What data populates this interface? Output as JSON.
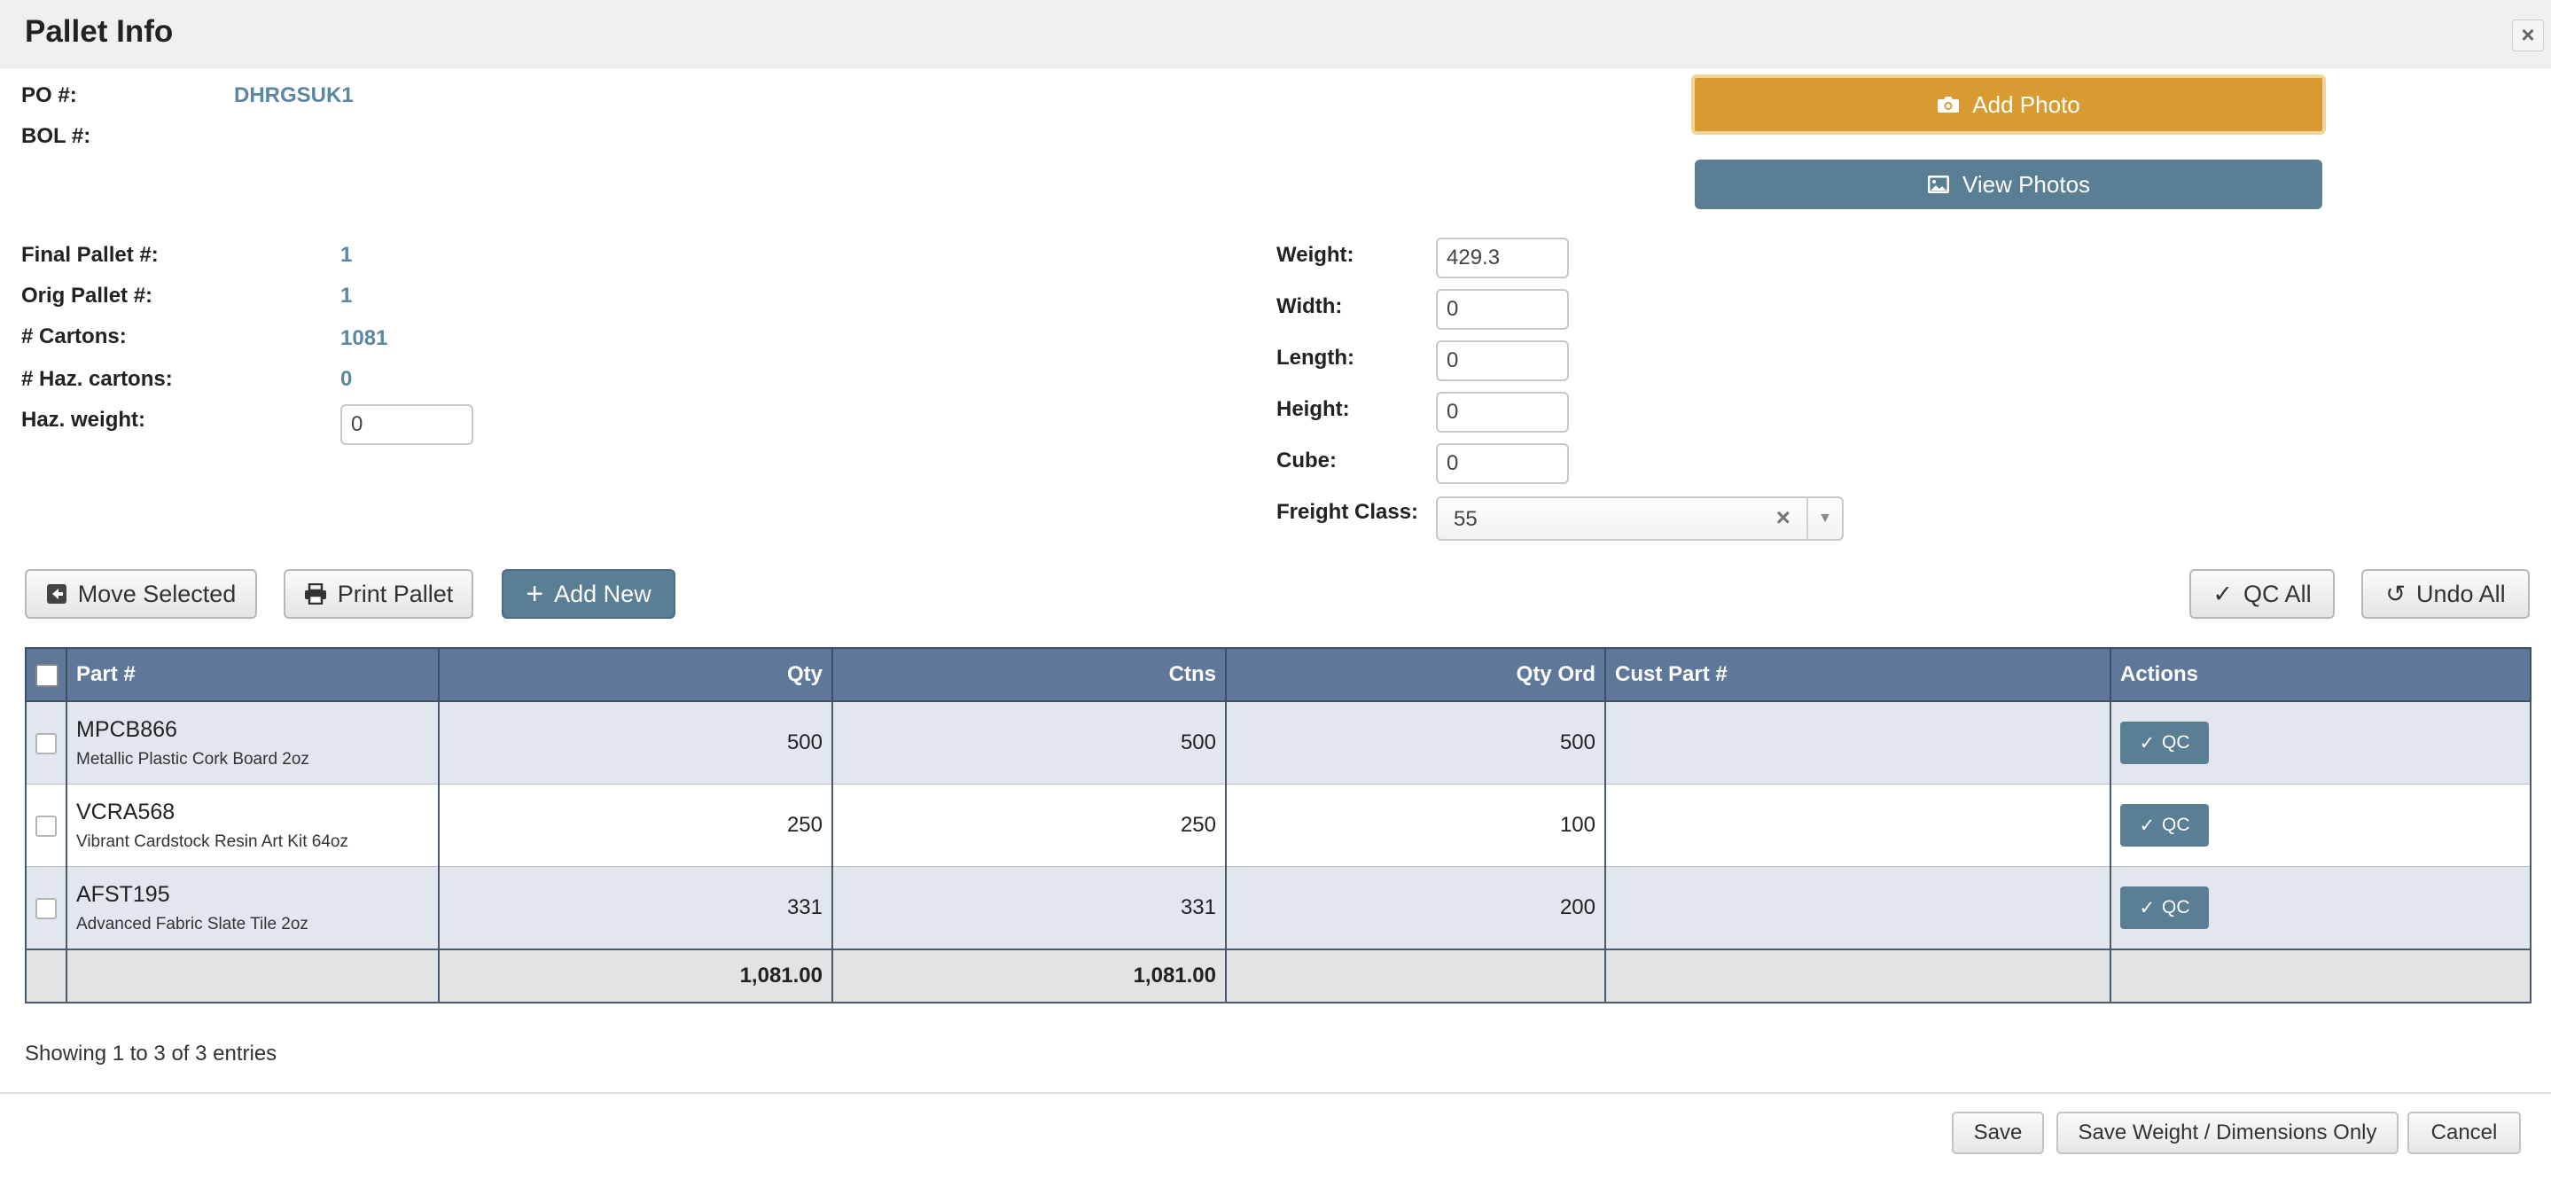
{
  "header": {
    "title": "Pallet Info",
    "close_icon": "close-icon"
  },
  "po": {
    "label": "PO #:",
    "value": "DHRGSUK1"
  },
  "bol": {
    "label": "BOL #:",
    "value": ""
  },
  "photos": {
    "add_label": "Add Photo",
    "view_label": "View Photos",
    "add_color": "#d89b31",
    "view_color": "#5a7f94"
  },
  "pallet": {
    "final_label": "Final Pallet #:",
    "final_value": "1",
    "orig_label": "Orig Pallet #:",
    "orig_value": "1",
    "cartons_label": "# Cartons:",
    "cartons_value": "1081",
    "haz_cartons_label": "# Haz. cartons:",
    "haz_cartons_value": "0",
    "haz_weight_label": "Haz. weight:",
    "haz_weight_value": "0"
  },
  "dims": {
    "weight_label": "Weight:",
    "weight_value": "429.3",
    "width_label": "Width:",
    "width_value": "0",
    "length_label": "Length:",
    "length_value": "0",
    "height_label": "Height:",
    "height_value": "0",
    "cube_label": "Cube:",
    "cube_value": "0",
    "freight_label": "Freight Class:",
    "freight_value": "55"
  },
  "toolbar": {
    "move_selected": "Move Selected",
    "print_pallet": "Print Pallet",
    "add_new": "Add New",
    "qc_all": "QC All",
    "undo_all": "Undo All"
  },
  "table": {
    "columns": {
      "part": "Part #",
      "qty": "Qty",
      "ctns": "Ctns",
      "qty_ord": "Qty Ord",
      "cust_part": "Cust Part #",
      "actions": "Actions"
    },
    "rows": [
      {
        "part": "MPCB866",
        "desc": "Metallic Plastic Cork Board 2oz",
        "qty": "500",
        "ctns": "500",
        "qty_ord": "500",
        "cust_part": "",
        "action": "QC"
      },
      {
        "part": "VCRA568",
        "desc": "Vibrant Cardstock Resin Art Kit 64oz",
        "qty": "250",
        "ctns": "250",
        "qty_ord": "100",
        "cust_part": "",
        "action": "QC"
      },
      {
        "part": "AFST195",
        "desc": "Advanced Fabric Slate Tile 2oz",
        "qty": "331",
        "ctns": "331",
        "qty_ord": "200",
        "cust_part": "",
        "action": "QC"
      }
    ],
    "totals": {
      "qty": "1,081.00",
      "ctns": "1,081.00"
    },
    "header_color": "#5f7899"
  },
  "footer": {
    "info": "Showing 1 to 3 of 3 entries",
    "save": "Save",
    "save_dims": "Save Weight / Dimensions Only",
    "cancel": "Cancel"
  }
}
